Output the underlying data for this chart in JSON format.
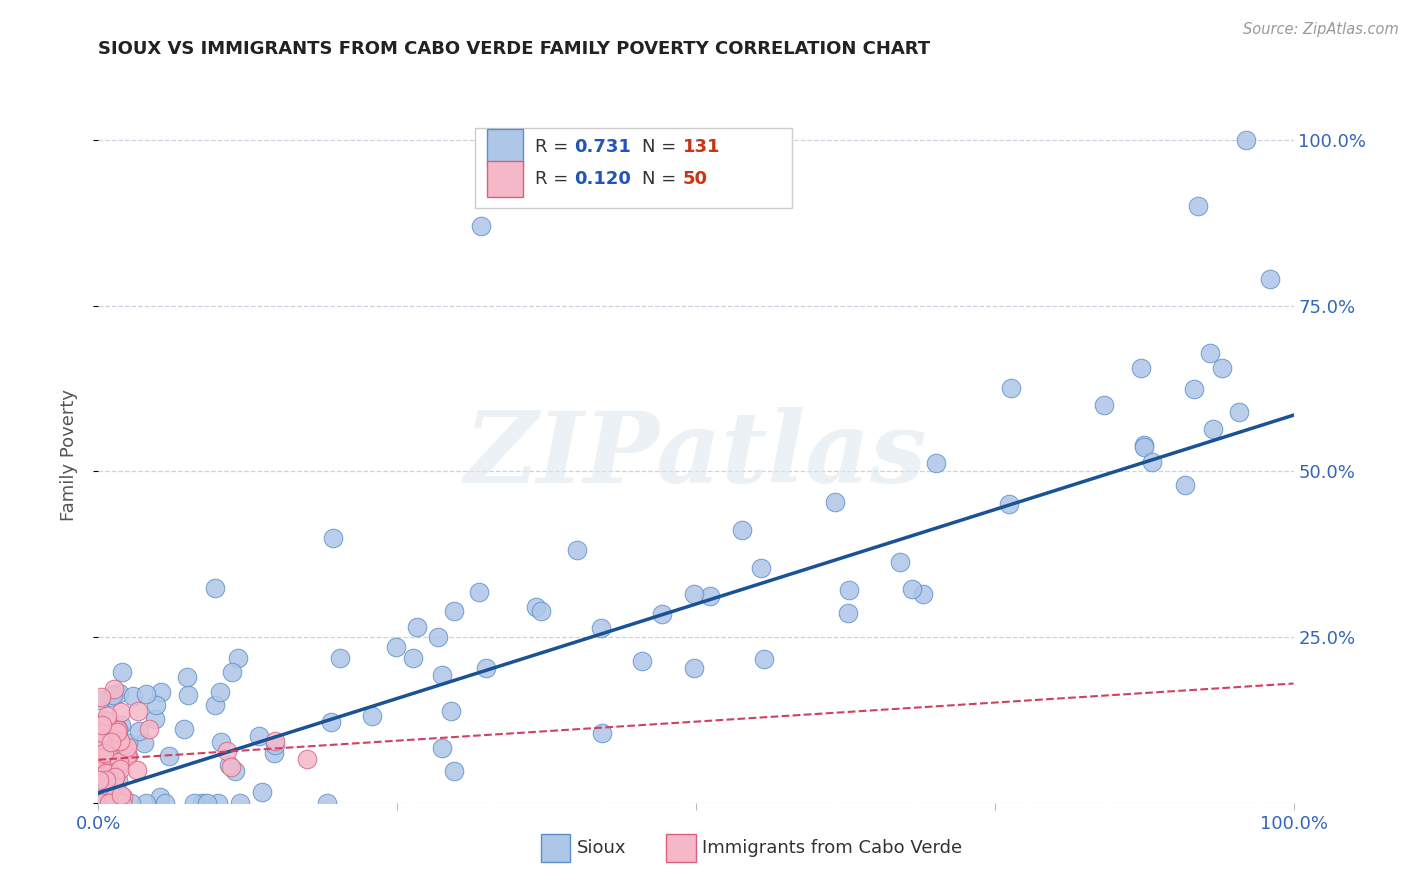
{
  "title": "SIOUX VS IMMIGRANTS FROM CABO VERDE FAMILY POVERTY CORRELATION CHART",
  "source": "Source: ZipAtlas.com",
  "ylabel": "Family Poverty",
  "watermark": "ZIPatlas",
  "sioux_color": "#aec6e8",
  "sioux_edge_color": "#5b8fc9",
  "sioux_line_color": "#1a5296",
  "cabo_color": "#f5b8c8",
  "cabo_edge_color": "#d96080",
  "cabo_line_color": "#d04060",
  "background_color": "#ffffff",
  "grid_color": "#c8d4e0",
  "r_color": "#2255bb",
  "n_color": "#cc3311",
  "tick_color": "#3366bb",
  "ylabel_color": "#555555",
  "sioux_slope": 0.57,
  "sioux_intercept": 0.015,
  "cabo_slope": 0.115,
  "cabo_intercept": 0.065
}
